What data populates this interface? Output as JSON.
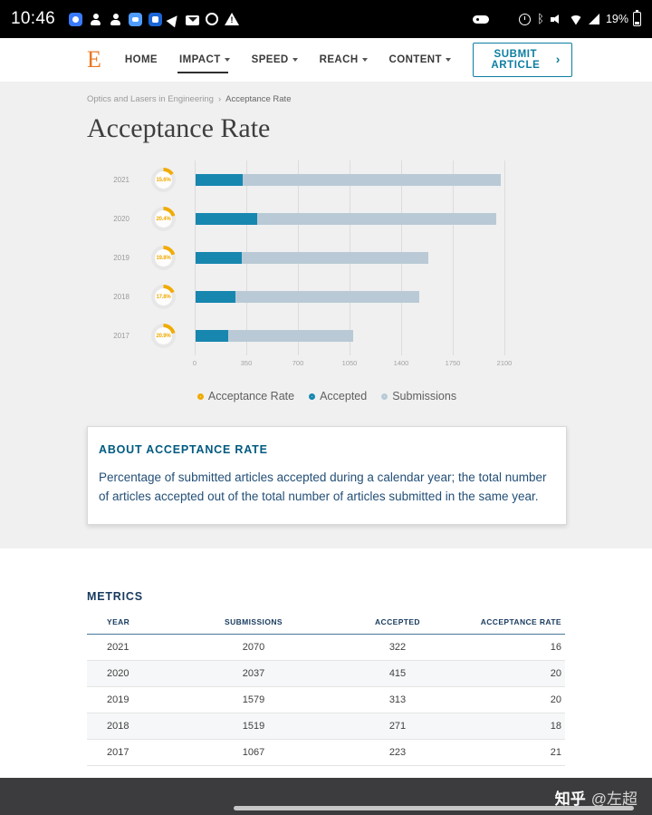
{
  "status_bar": {
    "time": "10:46",
    "battery": "19%",
    "left_icons": [
      "messenger-icon",
      "contacts-icon",
      "person-add-icon",
      "chat-app-icon",
      "chat-app-2-icon",
      "navigation-icon",
      "mail-icon",
      "app-circle-icon",
      "warning-icon"
    ],
    "right_icons": [
      "keyboard-icon",
      "alarm-icon",
      "bluetooth-icon",
      "mute-icon",
      "wifi-icon",
      "signal-icon"
    ]
  },
  "nav": {
    "logo": "E",
    "items": [
      {
        "label": "HOME",
        "has_caret": false,
        "active": false
      },
      {
        "label": "IMPACT",
        "has_caret": true,
        "active": true
      },
      {
        "label": "SPEED",
        "has_caret": true,
        "active": false
      },
      {
        "label": "REACH",
        "has_caret": true,
        "active": false
      },
      {
        "label": "CONTENT",
        "has_caret": true,
        "active": false
      }
    ],
    "submit_label": "SUBMIT ARTICLE"
  },
  "breadcrumb": {
    "parent": "Optics and Lasers in Engineering",
    "current": "Acceptance Rate"
  },
  "page": {
    "title": "Acceptance Rate"
  },
  "chart_data": {
    "type": "bar",
    "orientation": "horizontal",
    "categories": [
      "2021",
      "2020",
      "2019",
      "2018",
      "2017"
    ],
    "series": [
      {
        "name": "Accepted",
        "color": "#1787b0",
        "values": [
          322,
          415,
          313,
          271,
          223
        ]
      },
      {
        "name": "Submissions",
        "color": "#b9cad6",
        "values": [
          2070,
          2037,
          1579,
          1519,
          1067
        ]
      }
    ],
    "acceptance_rate_labels": [
      "15.6%",
      "20.4%",
      "19.8%",
      "17.8%",
      "20.9%"
    ],
    "acceptance_color": "#f0ab00",
    "x_ticks": [
      0,
      350,
      700,
      1050,
      1400,
      1750,
      2100
    ],
    "xlim": [
      0,
      2100
    ],
    "grid": true,
    "legend": [
      "Acceptance Rate",
      "Accepted",
      "Submissions"
    ],
    "legend_colors": [
      "#f0ab00",
      "#1787b0",
      "#b9cad6"
    ],
    "legend_position": "bottom"
  },
  "about": {
    "title": "ABOUT ACCEPTANCE RATE",
    "body": "Percentage of submitted articles accepted during a calendar year; the total number of articles accepted out of the total number of articles submitted in the same year."
  },
  "metrics": {
    "title": "METRICS",
    "columns": [
      "YEAR",
      "SUBMISSIONS",
      "ACCEPTED",
      "ACCEPTANCE RATE"
    ],
    "rows": [
      [
        "2021",
        "2070",
        "322",
        "16"
      ],
      [
        "2020",
        "2037",
        "415",
        "20"
      ],
      [
        "2019",
        "1579",
        "313",
        "20"
      ],
      [
        "2018",
        "1519",
        "271",
        "18"
      ],
      [
        "2017",
        "1067",
        "223",
        "21"
      ]
    ]
  },
  "watermark": {
    "brand": "知乎",
    "user": "@左超"
  }
}
